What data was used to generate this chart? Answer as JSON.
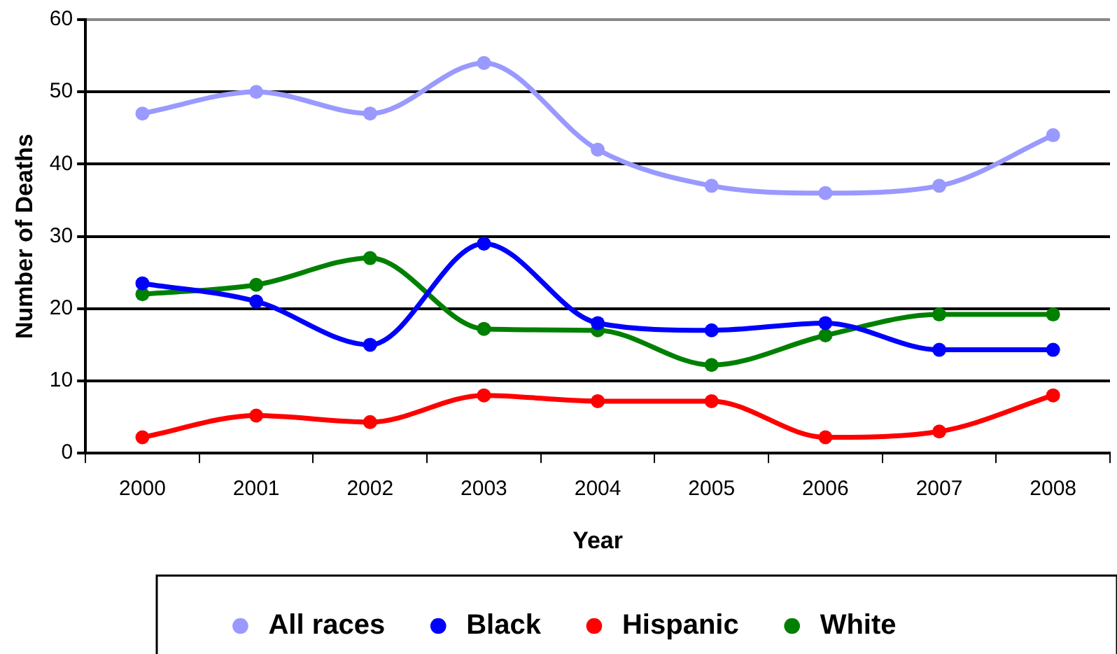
{
  "chart_data": {
    "type": "line",
    "xlabel": "Year",
    "ylabel": "Number of Deaths",
    "categories": [
      "2000",
      "2001",
      "2002",
      "2003",
      "2004",
      "2005",
      "2006",
      "2007",
      "2008"
    ],
    "series": [
      {
        "name": "All races",
        "color": "#9999ff",
        "values": [
          47,
          50,
          47,
          54,
          42,
          37,
          36,
          37,
          44
        ]
      },
      {
        "name": "Black",
        "color": "#0000ff",
        "values": [
          23.5,
          21,
          15,
          29,
          18,
          17,
          18,
          14.3,
          14.3
        ]
      },
      {
        "name": "Hispanic",
        "color": "#ff0000",
        "values": [
          2.2,
          5.2,
          4.3,
          8,
          7.2,
          7.2,
          2.2,
          3,
          8
        ]
      },
      {
        "name": "White",
        "color": "#008000",
        "values": [
          22,
          23.3,
          27,
          17.2,
          17,
          12.2,
          16.3,
          19.2,
          19.2
        ]
      }
    ],
    "ylim": [
      0,
      60
    ],
    "yticks": [
      0,
      10,
      20,
      30,
      40,
      50,
      60
    ],
    "grid": "y",
    "legend": "bottom",
    "marker": "circle",
    "line_style": "solid"
  }
}
